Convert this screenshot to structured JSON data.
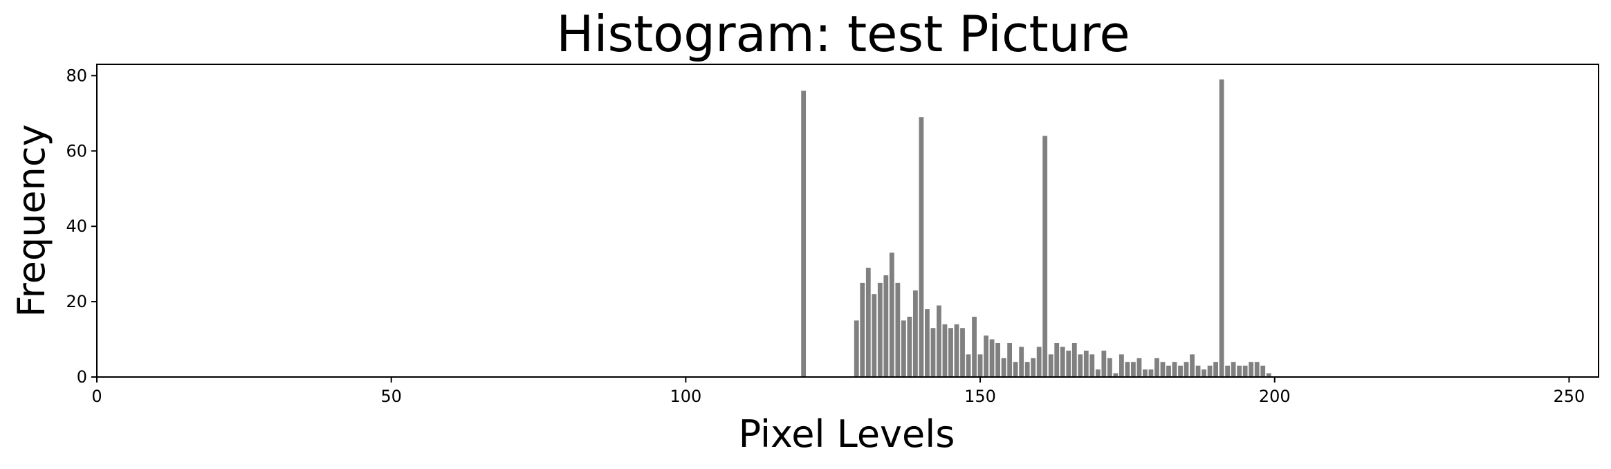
{
  "chart_data": {
    "type": "bar",
    "title": "Histogram: test Picture",
    "xlabel": "Pixel Levels",
    "ylabel": "Frequency",
    "xlim": [
      0,
      255
    ],
    "ylim": [
      0,
      83
    ],
    "grid": false,
    "bar_color": "#808080",
    "x_ticks": [
      0,
      50,
      100,
      150,
      200,
      250
    ],
    "y_ticks": [
      0,
      20,
      40,
      60,
      80
    ],
    "x_tick_labels": [
      "0",
      "50",
      "100",
      "150",
      "200",
      "250"
    ],
    "y_tick_labels": [
      "0",
      "20",
      "40",
      "60",
      "80"
    ],
    "x": [
      120,
      129,
      130,
      131,
      132,
      133,
      134,
      135,
      136,
      137,
      138,
      139,
      140,
      141,
      142,
      143,
      144,
      145,
      146,
      147,
      148,
      149,
      150,
      151,
      152,
      153,
      154,
      155,
      156,
      157,
      158,
      159,
      160,
      161,
      162,
      163,
      164,
      165,
      166,
      167,
      168,
      169,
      170,
      171,
      172,
      173,
      174,
      175,
      176,
      177,
      178,
      179,
      180,
      181,
      182,
      183,
      184,
      185,
      186,
      187,
      188,
      189,
      190,
      191,
      192,
      193,
      194,
      195,
      196,
      197,
      198,
      199
    ],
    "values": [
      76,
      15,
      25,
      29,
      22,
      25,
      27,
      33,
      25,
      15,
      16,
      23,
      69,
      18,
      13,
      19,
      14,
      13,
      14,
      13,
      6,
      16,
      6,
      11,
      10,
      9,
      5,
      9,
      4,
      8,
      4,
      5,
      8,
      64,
      6,
      9,
      8,
      7,
      9,
      6,
      7,
      6,
      2,
      7,
      5,
      1,
      6,
      4,
      4,
      5,
      2,
      2,
      5,
      4,
      3,
      4,
      3,
      4,
      6,
      3,
      2,
      3,
      4,
      79,
      3,
      4,
      3,
      3,
      4,
      4,
      3,
      1
    ]
  }
}
